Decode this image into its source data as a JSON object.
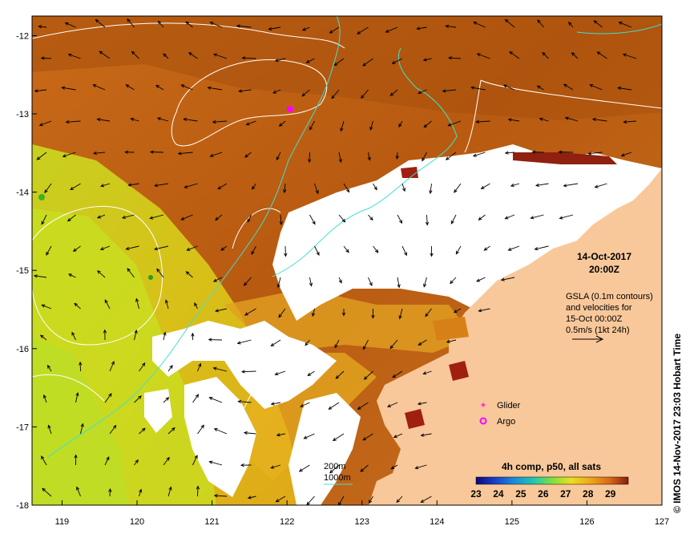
{
  "map": {
    "title_date": "14-Oct-2017",
    "title_time": "20:00Z",
    "x_ticks": [
      "119",
      "120",
      "121",
      "122",
      "123",
      "124",
      "125",
      "126",
      "127"
    ],
    "y_ticks": [
      "-12",
      "-13",
      "-14",
      "-15",
      "-16",
      "-17",
      "-18"
    ],
    "x_range": [
      118.6,
      127
    ],
    "y_range": [
      -18,
      -11.75
    ],
    "gsla_note": [
      "GSLA (0.1m contours)",
      "and velocities for",
      "15-Oct 00:00Z",
      "0.5m/s (1kt 24h)"
    ],
    "legend": {
      "glider_label": "Glider",
      "argo_label": "Argo",
      "glider_color": "#ff33cc",
      "argo_color": "#ff00ff"
    },
    "isobaths": {
      "label_200": "200m",
      "label_1000": "1000m",
      "color": "#40e0d0"
    },
    "colorbar": {
      "title": "4h comp, p50, all sats",
      "ticks": [
        "23",
        "24",
        "25",
        "26",
        "27",
        "28",
        "29"
      ],
      "range": [
        23,
        29.8
      ]
    },
    "credit": "© IMOS 14-Nov-2017 23:03 Hobart Time",
    "colors": {
      "land": "#f8c89a",
      "cloud": "#ffffff",
      "hot": "#c8701e",
      "cool": "#d8e020"
    },
    "platforms": {
      "argo": {
        "lon": 122.05,
        "lat": -12.9
      },
      "glider": {
        "lon": 122.0,
        "lat": -12.92
      }
    }
  }
}
